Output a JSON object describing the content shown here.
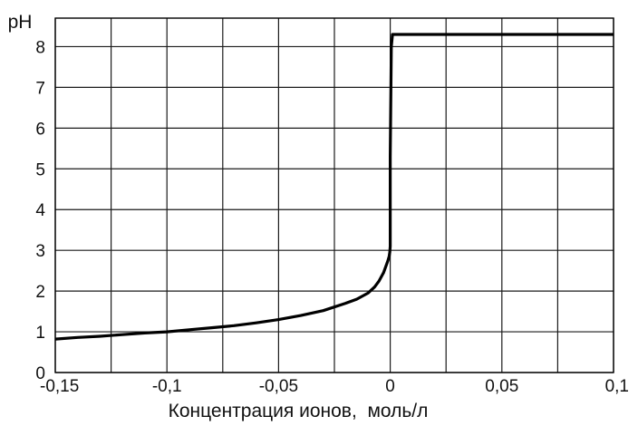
{
  "chart_data": {
    "type": "line",
    "title": "",
    "xlabel": "Концентрация ионов,  моль/л",
    "ylabel": "pH",
    "xlim": [
      -0.15,
      0.1
    ],
    "ylim": [
      0,
      8.7
    ],
    "grid": true,
    "x_ticks": [
      "-0,15",
      "-0,1",
      "-0,05",
      "0",
      "0,05",
      "0,1"
    ],
    "x_tick_values": [
      -0.15,
      -0.1,
      -0.05,
      0,
      0.05,
      0.1
    ],
    "y_ticks": [
      "0",
      "1",
      "2",
      "3",
      "4",
      "5",
      "6",
      "7",
      "8"
    ],
    "y_tick_values": [
      0,
      1,
      2,
      3,
      4,
      5,
      6,
      7,
      8
    ],
    "series": [
      {
        "color": "#000000",
        "x": [
          -0.15,
          -0.14,
          -0.13,
          -0.12,
          -0.11,
          -0.1,
          -0.09,
          -0.08,
          -0.07,
          -0.06,
          -0.05,
          -0.04,
          -0.03,
          -0.02,
          -0.015,
          -0.01,
          -0.007,
          -0.005,
          -0.003,
          -0.002,
          -0.001,
          -0.0005,
          -0.0002,
          0,
          0,
          0.0005,
          0.001,
          0.1
        ],
        "y": [
          0.82,
          0.86,
          0.89,
          0.93,
          0.97,
          1.0,
          1.05,
          1.1,
          1.15,
          1.22,
          1.3,
          1.4,
          1.52,
          1.7,
          1.8,
          1.95,
          2.1,
          2.25,
          2.45,
          2.6,
          2.75,
          2.85,
          2.95,
          3.1,
          5.3,
          8.0,
          8.3,
          8.3
        ]
      }
    ]
  }
}
